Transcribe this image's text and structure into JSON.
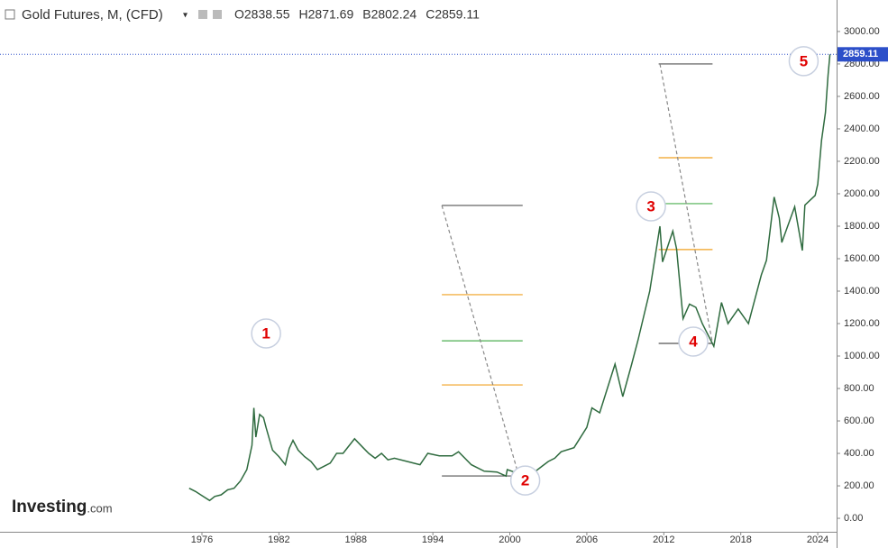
{
  "chart_data": {
    "type": "line",
    "title": "Gold Futures, M, (CFD)",
    "ohlc": [
      {
        "label": "O",
        "value": 2838.55
      },
      {
        "label": "H",
        "value": 2871.69
      },
      {
        "label": "B",
        "value": 2802.24
      },
      {
        "label": "C",
        "value": 2859.11
      }
    ],
    "last_price": 2859.11,
    "color": "#2f6b3f",
    "x": [
      1975.0,
      1975.5,
      1976.0,
      1976.6,
      1977.0,
      1977.5,
      1978.0,
      1978.5,
      1979.0,
      1979.5,
      1979.9,
      1980.05,
      1980.2,
      1980.5,
      1980.8,
      1981.0,
      1981.5,
      1982.0,
      1982.5,
      1982.8,
      1983.1,
      1983.5,
      1984.0,
      1984.5,
      1985.0,
      1985.5,
      1986.0,
      1986.5,
      1987.0,
      1987.9,
      1988.5,
      1989.0,
      1989.5,
      1990.0,
      1990.5,
      1991.0,
      1992.0,
      1993.0,
      1993.6,
      1994.5,
      1995.5,
      1996.0,
      1997.0,
      1998.0,
      1999.0,
      1999.7,
      1999.8,
      2000.5,
      2001.2,
      2002.0,
      2002.5,
      2003.0,
      2003.5,
      2004.0,
      2005.0,
      2006.0,
      2006.4,
      2007.0,
      2008.2,
      2008.8,
      2009.5,
      2010.0,
      2010.9,
      2011.7,
      2011.9,
      2012.7,
      2013.0,
      2013.5,
      2014.0,
      2014.5,
      2015.0,
      2015.9,
      2016.5,
      2017.0,
      2017.8,
      2018.6,
      2019.0,
      2019.6,
      2020.0,
      2020.6,
      2021.0,
      2021.2,
      2022.2,
      2022.8,
      2023.0,
      2023.8,
      2024.0,
      2024.3,
      2024.6,
      2024.8,
      2024.95
    ],
    "values": [
      185,
      165,
      140,
      110,
      135,
      145,
      175,
      185,
      230,
      300,
      450,
      680,
      500,
      640,
      620,
      560,
      420,
      380,
      330,
      430,
      480,
      420,
      380,
      350,
      300,
      320,
      340,
      400,
      400,
      490,
      440,
      400,
      370,
      400,
      360,
      370,
      350,
      330,
      400,
      385,
      385,
      410,
      330,
      290,
      285,
      260,
      300,
      280,
      260,
      290,
      320,
      350,
      370,
      410,
      435,
      560,
      680,
      650,
      950,
      750,
      950,
      1100,
      1400,
      1800,
      1580,
      1770,
      1660,
      1230,
      1320,
      1300,
      1200,
      1060,
      1330,
      1200,
      1290,
      1200,
      1320,
      1500,
      1590,
      1980,
      1850,
      1700,
      1920,
      1650,
      1930,
      1990,
      2060,
      2330,
      2500,
      2730,
      2859
    ],
    "xlim": [
      1960.26,
      2025.47
    ],
    "ylim": [
      -83,
      3194
    ],
    "xticks": [
      1976,
      1982,
      1988,
      1994,
      2000,
      2006,
      2012,
      2018,
      2024
    ],
    "yticks": [
      {
        "value": 0,
        "label": "0.00"
      },
      {
        "value": 200,
        "label": "200.00"
      },
      {
        "value": 400,
        "label": "400.00"
      },
      {
        "value": 600,
        "label": "600.00"
      },
      {
        "value": 800,
        "label": "800.00"
      },
      {
        "value": 1000,
        "label": "1000.00"
      },
      {
        "value": 1200,
        "label": "1200.00"
      },
      {
        "value": 1400,
        "label": "1400.00"
      },
      {
        "value": 1600,
        "label": "1600.00"
      },
      {
        "value": 1800,
        "label": "1800.00"
      },
      {
        "value": 2000,
        "label": "2000.00"
      },
      {
        "value": 2200,
        "label": "2200.00"
      },
      {
        "value": 2400,
        "label": "2400.00"
      },
      {
        "value": 2600,
        "label": "2600.00"
      },
      {
        "value": 2800,
        "label": "2800.00"
      },
      {
        "value": 3000,
        "label": "3000.00"
      }
    ],
    "retracements": [
      {
        "x": [
          1994.7,
          2001.0
        ],
        "levels": [
          1928,
          1378,
          1094,
          822,
          261
        ],
        "colors": [
          "#555555",
          "#f0a020",
          "#4caf50",
          "#f0a020",
          "#555555"
        ]
      },
      {
        "x": [
          2011.6,
          2015.8
        ],
        "levels": [
          2800,
          2222,
          1939,
          1656,
          1078
        ],
        "colors": [
          "#555555",
          "#f0a020",
          "#4caf50",
          "#f0a020",
          "#555555"
        ]
      }
    ],
    "trend_lines": [
      {
        "x": [
          1994.7,
          2000.7
        ],
        "y": [
          1928,
          261
        ]
      },
      {
        "x": [
          2011.7,
          2015.8
        ],
        "y": [
          2800,
          1078
        ]
      }
    ],
    "waves": [
      {
        "label": "1",
        "x": 1981.0,
        "y": 1139
      },
      {
        "label": "2",
        "x": 2001.2,
        "y": 233
      },
      {
        "label": "3",
        "x": 2011.0,
        "y": 1922
      },
      {
        "label": "4",
        "x": 2014.3,
        "y": 1089
      },
      {
        "label": "5",
        "x": 2022.9,
        "y": 2817
      }
    ],
    "logo": {
      "brand": "Investing",
      "suffix": ".com"
    }
  }
}
